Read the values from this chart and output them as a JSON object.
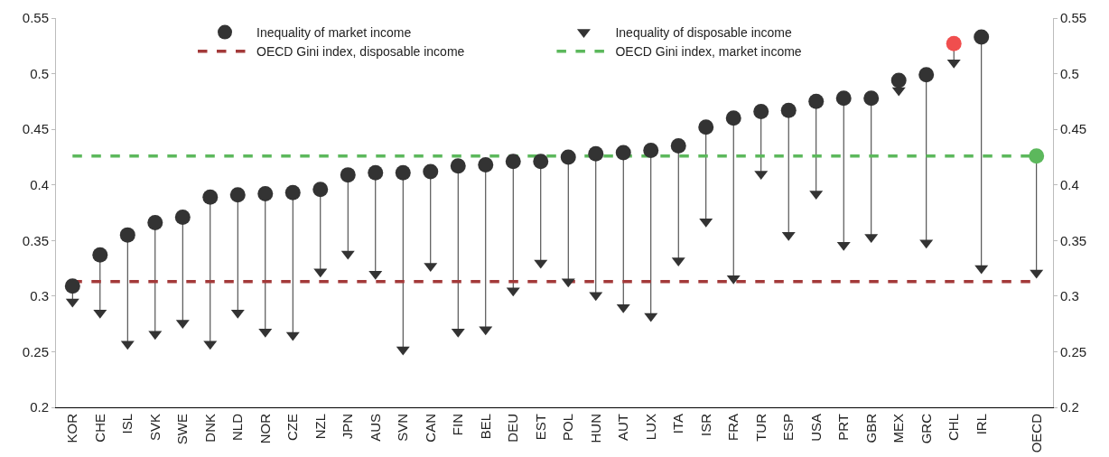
{
  "chart_data": {
    "type": "scatter",
    "categories": [
      "KOR",
      "CHE",
      "ISL",
      "SVK",
      "SWE",
      "DNK",
      "NLD",
      "NOR",
      "CZE",
      "NZL",
      "JPN",
      "AUS",
      "SVN",
      "CAN",
      "FIN",
      "BEL",
      "DEU",
      "EST",
      "POL",
      "HUN",
      "AUT",
      "LUX",
      "ITA",
      "ISR",
      "FRA",
      "TUR",
      "ESP",
      "USA",
      "PRT",
      "GBR",
      "MEX",
      "GRC",
      "CHL",
      "IRL",
      null,
      "OECD"
    ],
    "series": [
      {
        "name": "Inequality of market income",
        "color": "#333333",
        "marker": "circle",
        "colors": [
          "#333333",
          "#333333",
          "#333333",
          "#333333",
          "#333333",
          "#333333",
          "#333333",
          "#333333",
          "#333333",
          "#333333",
          "#333333",
          "#333333",
          "#333333",
          "#333333",
          "#333333",
          "#333333",
          "#333333",
          "#333333",
          "#333333",
          "#333333",
          "#333333",
          "#333333",
          "#333333",
          "#333333",
          "#333333",
          "#333333",
          "#333333",
          "#333333",
          "#333333",
          "#333333",
          "#333333",
          "#333333",
          "#f04e4e",
          "#333333",
          null,
          "#5cb85c"
        ],
        "values": [
          0.309,
          0.337,
          0.355,
          0.366,
          0.371,
          0.389,
          0.391,
          0.392,
          0.393,
          0.396,
          0.409,
          0.411,
          0.411,
          0.412,
          0.417,
          0.418,
          0.421,
          0.421,
          0.425,
          0.428,
          0.429,
          0.431,
          0.435,
          0.452,
          0.46,
          0.466,
          0.467,
          0.475,
          0.478,
          0.478,
          0.494,
          0.499,
          0.527,
          0.533,
          null,
          0.426
        ]
      },
      {
        "name": "Inequality of disposable income",
        "color": "#333333",
        "marker": "triangle",
        "values": [
          0.295,
          0.285,
          0.257,
          0.266,
          0.276,
          0.257,
          0.285,
          0.268,
          0.265,
          0.322,
          0.338,
          0.32,
          0.252,
          0.327,
          0.268,
          0.27,
          0.305,
          0.33,
          0.313,
          0.301,
          0.29,
          0.282,
          0.332,
          0.367,
          0.316,
          0.41,
          0.355,
          0.392,
          0.346,
          0.353,
          0.485,
          0.348,
          0.51,
          0.325,
          null,
          0.321
        ]
      }
    ],
    "ref_lines": [
      {
        "axis": "y",
        "value": 0.426,
        "label": "OECD Gini index, market income",
        "color": "#5cb85c",
        "line_style": "dashed"
      },
      {
        "axis": "y",
        "value": 0.313,
        "label": "OECD Gini index, disposable income",
        "color": "#a33a3a",
        "line_style": "dashed"
      }
    ],
    "ylim": [
      0.2,
      0.55
    ],
    "yticks": [
      0.2,
      0.25,
      0.3,
      0.35,
      0.4,
      0.45,
      0.5,
      0.55
    ],
    "y2lim": [
      0.2,
      0.55
    ],
    "y2ticks": [
      0.2,
      0.25,
      0.3,
      0.35,
      0.4,
      0.45,
      0.5,
      0.55
    ],
    "grid": false,
    "legend": "top"
  }
}
